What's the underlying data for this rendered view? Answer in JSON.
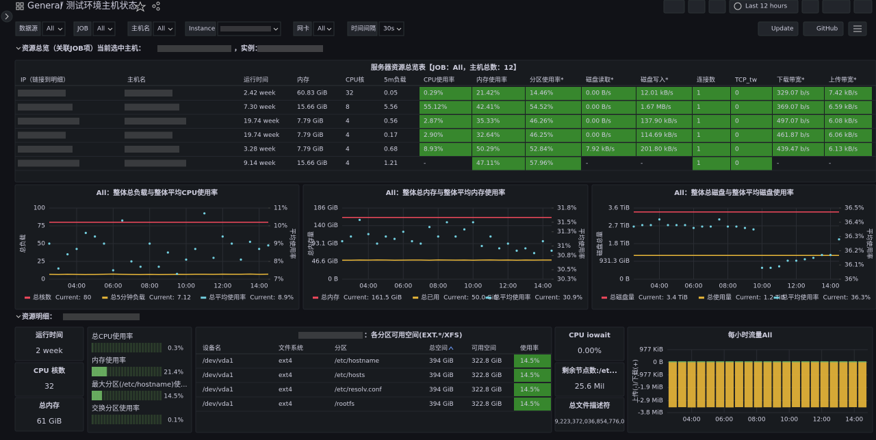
{
  "header": {
    "breadcrumb": "General",
    "title": "/ 测试环境主机状态",
    "time_range": "Last 12 hours"
  },
  "variables": [
    {
      "label": "数据源",
      "value": "All"
    },
    {
      "label": "JOB",
      "value": "All"
    },
    {
      "label": "主机名",
      "value": "All"
    },
    {
      "label": "Instance"
    },
    {
      "label": "网卡",
      "value": "All"
    },
    {
      "label": "时间间隔",
      "value": "30s"
    }
  ],
  "buttons": [
    "Update",
    "GitHub"
  ],
  "sections": [
    {
      "title": "资源总览（关联JOB项）当前选中主机：",
      "instance_label": "，实例："
    },
    {
      "title": "资源明细："
    }
  ],
  "overview_table": {
    "title": "服务器资源总览表【JOB：All，主机总数：12】",
    "columns": [
      "IP（链接到明细）",
      "主机名",
      "运行时间",
      "内存",
      "CPU核",
      "5m负载",
      "CPU使用率",
      "内存使用率",
      "分区使用率*",
      "磁盘读取*",
      "磁盘写入*",
      "连接数",
      "TCP_tw",
      "下载带宽*",
      "上传带宽*"
    ],
    "rows": [
      [
        null,
        null,
        "2.42 week",
        "60.83 GiB",
        "32",
        "0.05",
        "0.29%",
        "21.42%",
        "14.46%",
        "0.00 B/s",
        "12.01 kB/s",
        "1",
        "0",
        "329.07 b/s",
        "7.42 kB/s"
      ],
      [
        null,
        null,
        "7.30 week",
        "15.66 GiB",
        "8",
        "5.56",
        "55.12%",
        "42.41%",
        "54.52%",
        "0.00 B/s",
        "1.67 MB/s",
        "1",
        "0",
        "369.07 b/s",
        "6.59 kB/s"
      ],
      [
        null,
        null,
        "19.74 week",
        "7.79 GiB",
        "4",
        "0.56",
        "2.87%",
        "35.33%",
        "46.26%",
        "0.00 B/s",
        "137.90 kB/s",
        "1",
        "0",
        "497.07 b/s",
        "6.08 kB/s"
      ],
      [
        null,
        null,
        "19.74 week",
        "7.79 GiB",
        "4",
        "0.17",
        "2.90%",
        "32.64%",
        "46.25%",
        "0.00 B/s",
        "114.69 kB/s",
        "1",
        "0",
        "461.87 b/s",
        "6.06 kB/s"
      ],
      [
        null,
        null,
        "3.28 week",
        "7.79 GiB",
        "4",
        "0.68",
        "8.93%",
        "50.29%",
        "52.84%",
        "7.92 kB/s",
        "201.80 kB/s",
        "1",
        "0",
        "439.47 b/s",
        "6.13 kB/s"
      ],
      [
        null,
        null,
        "9.14 week",
        "15.66 GiB",
        "4",
        "1.21",
        "-",
        "47.11%",
        "57.96%",
        "-",
        "-",
        "1",
        "0",
        "-",
        "-"
      ]
    ]
  },
  "chart_data": [
    {
      "type": "line",
      "title": "All：整体总负载与整体平均CPU使用率",
      "ylabel": "总负载",
      "y2label": "平均使用率",
      "x": [
        "02:30",
        "03:00",
        "03:30",
        "04:00",
        "04:30",
        "05:00",
        "05:30",
        "06:00",
        "06:30",
        "07:00",
        "07:30",
        "08:00",
        "08:30",
        "09:00",
        "09:30",
        "10:00",
        "10:30",
        "11:00",
        "11:30",
        "12:00",
        "12:30",
        "13:00",
        "13:30",
        "14:00",
        "14:30"
      ],
      "xlim": [
        "02:30",
        "14:30"
      ],
      "xticks": [
        "04:00",
        "06:00",
        "08:00",
        "10:00",
        "12:00",
        "14:00"
      ],
      "ylim": [
        0,
        100
      ],
      "yticks": [
        0,
        25,
        50,
        75,
        100
      ],
      "y2lim": [
        7,
        11
      ],
      "y2ticks": [
        {
          "value": 7,
          "label": "7%"
        },
        {
          "value": 8,
          "label": "8%"
        },
        {
          "value": 9,
          "label": "9%"
        },
        {
          "value": 10,
          "label": "10%"
        },
        {
          "value": 11,
          "label": "11%"
        }
      ],
      "grid": true,
      "current_label": "Current:",
      "series": [
        {
          "name": "总核数",
          "color": "#f2495c",
          "current": "80",
          "values": [
            80,
            80,
            80,
            80,
            80,
            80,
            80,
            80,
            80,
            80,
            80,
            80,
            80,
            80,
            80,
            80,
            80,
            80,
            80,
            80,
            80,
            80,
            80,
            80,
            80
          ]
        },
        {
          "name": "总5分钟负载",
          "color": "#eab839",
          "current": "7.12",
          "values": [
            6.8,
            6.6,
            6.9,
            6.7,
            6.5,
            6.6,
            6.9,
            7.2,
            6.8,
            6.6,
            6.5,
            6.7,
            6.4,
            6.6,
            6.8,
            6.7,
            6.9,
            7.0,
            6.8,
            7.1,
            6.9,
            7.0,
            7.2,
            6.8,
            7.12
          ]
        },
        {
          "name": "总平均使用率",
          "color": "#73d0e0",
          "current": "8.9%",
          "axis": "y2",
          "style": "points",
          "values": [
            9.0,
            7.6,
            8.4,
            8.7,
            9.6,
            9.4,
            9.0,
            7.5,
            10.3,
            8.0,
            7.7,
            9.0,
            7.7,
            8.5,
            7.3,
            8.1,
            8.7,
            10.7,
            8.2,
            9.4,
            9.0,
            8.1,
            9.1,
            8.7,
            8.9
          ]
        }
      ]
    },
    {
      "type": "line",
      "title": "All：整体总内存与整体平均内存使用率",
      "ylabel": "总内存量",
      "y2label": "平均使用率",
      "x": [
        "02:30",
        "03:00",
        "03:30",
        "04:00",
        "04:30",
        "05:00",
        "05:30",
        "06:00",
        "06:30",
        "07:00",
        "07:30",
        "08:00",
        "08:30",
        "09:00",
        "09:30",
        "10:00",
        "10:30",
        "11:00",
        "11:30",
        "12:00",
        "12:30",
        "13:00",
        "13:30",
        "14:00",
        "14:30"
      ],
      "xlim": [
        "02:30",
        "14:30"
      ],
      "xticks": [
        "04:00",
        "06:00",
        "08:00",
        "10:00",
        "12:00",
        "14:00"
      ],
      "ylim": [
        0,
        186
      ],
      "yticks": [
        {
          "value": 0,
          "label": "0 B"
        },
        {
          "value": 46.6,
          "label": "46.6 GiB"
        },
        {
          "value": 93.1,
          "label": "93.1 GiB"
        },
        {
          "value": 140,
          "label": "140 GiB"
        },
        {
          "value": 186,
          "label": "186 GiB"
        }
      ],
      "y2lim": [
        30.3,
        31.8
      ],
      "y2ticks": [
        {
          "value": 30.3,
          "label": "30.3%"
        },
        {
          "value": 30.5,
          "label": "30.5%"
        },
        {
          "value": 30.8,
          "label": "30.8%"
        },
        {
          "value": 31,
          "label": "31%"
        },
        {
          "value": 31.3,
          "label": "31.3%"
        },
        {
          "value": 31.5,
          "label": "31.5%"
        },
        {
          "value": 31.8,
          "label": "31.8%"
        }
      ],
      "grid": true,
      "current_label": "Current:",
      "series": [
        {
          "name": "总内存",
          "color": "#f2495c",
          "current": "161.5 GiB",
          "values": [
            161.5,
            161.5,
            161.5,
            161.5,
            161.5,
            161.5,
            161.5,
            161.5,
            161.5,
            161.5,
            161.5,
            161.5,
            161.5,
            161.5,
            161.5,
            161.5,
            161.5,
            161.5,
            161.5,
            161.5,
            161.5,
            161.5,
            161.5,
            161.5,
            161.5
          ]
        },
        {
          "name": "总已用",
          "color": "#eab839",
          "current": "50.0 GiB",
          "values": [
            49.6,
            49.8,
            50.1,
            49.9,
            50.2,
            50.0,
            49.7,
            49.9,
            50.1,
            50.0,
            49.8,
            50.2,
            50.0,
            49.9,
            50.1,
            49.8,
            50.0,
            50.2,
            49.9,
            50.1,
            49.8,
            50.0,
            49.9,
            50.1,
            50.0
          ]
        },
        {
          "name": "总平均使用率",
          "color": "#73d0e0",
          "current": "30.9%",
          "axis": "y2",
          "style": "points",
          "values": [
            31.1,
            31.2,
            31.55,
            31.25,
            31.05,
            31.2,
            31.15,
            31.3,
            31.1,
            31.05,
            31.4,
            31.2,
            31.5,
            31.2,
            31.35,
            31.5,
            31.0,
            31.2,
            30.95,
            31.05,
            30.9,
            30.95,
            30.85,
            31.1,
            30.9
          ]
        }
      ]
    },
    {
      "type": "line",
      "title": "All：整体总磁盘与整体平均磁盘使用率",
      "ylabel": "磁盘总量",
      "y2label": "平均使用率",
      "x": [
        "02:30",
        "03:00",
        "03:30",
        "04:00",
        "04:30",
        "05:00",
        "05:30",
        "06:00",
        "06:30",
        "07:00",
        "07:30",
        "08:00",
        "08:30",
        "09:00",
        "09:30",
        "10:00",
        "10:30",
        "11:00",
        "11:30",
        "12:00",
        "12:30",
        "13:00",
        "13:30",
        "14:00",
        "14:30"
      ],
      "xlim": [
        "02:30",
        "14:30"
      ],
      "xticks": [
        "04:00",
        "06:00",
        "08:00",
        "10:00",
        "12:00",
        "14:00"
      ],
      "ylim": [
        0,
        3686.4
      ],
      "yticks": [
        {
          "value": 0,
          "label": "0 B"
        },
        {
          "value": 931.3,
          "label": "931.3 GiB"
        },
        {
          "value": 1843.2,
          "label": "1.8 TiB"
        },
        {
          "value": 2764.8,
          "label": "2.7 TiB"
        },
        {
          "value": 3686.4,
          "label": "3.6 TiB"
        }
      ],
      "y2lim": [
        36,
        36.5
      ],
      "y2ticks": [
        {
          "value": 36,
          "label": "36%"
        },
        {
          "value": 36.1,
          "label": "36.1%"
        },
        {
          "value": 36.2,
          "label": "36.2%"
        },
        {
          "value": 36.3,
          "label": "36.3%"
        },
        {
          "value": 36.4,
          "label": "36.4%"
        },
        {
          "value": 36.5,
          "label": "36.5%"
        }
      ],
      "grid": true,
      "current_label": "Current:",
      "series": [
        {
          "name": "总磁盘量",
          "color": "#f2495c",
          "current": "3.4 TiB",
          "values": [
            3481.6,
            3481.6,
            3481.6,
            3481.6,
            3481.6,
            3481.6,
            3481.6,
            3481.6,
            3481.6,
            3481.6,
            3481.6,
            3481.6,
            3481.6,
            3481.6,
            3481.6,
            3481.6,
            3481.6,
            3481.6,
            3481.6,
            3481.6,
            3481.6,
            3481.6,
            3481.6,
            3481.6,
            3481.6
          ]
        },
        {
          "name": "总使用量",
          "color": "#eab839",
          "current": "1.2 TiB",
          "values": [
            1228.8,
            1228.8,
            1228.8,
            1228.8,
            1228.8,
            1228.8,
            1228.8,
            1228.8,
            1228.8,
            1228.8,
            1228.8,
            1228.8,
            1228.8,
            1228.8,
            1228.8,
            1228.8,
            1228.8,
            1228.8,
            1228.8,
            1228.8,
            1228.8,
            1228.8,
            1228.8,
            1228.8,
            1228.8
          ]
        },
        {
          "name": "总平均使用率",
          "color": "#73d0e0",
          "current": "36.3%",
          "axis": "y2",
          "style": "points",
          "values": [
            36.37,
            36.38,
            36.38,
            36.42,
            36.38,
            36.38,
            36.38,
            36.36,
            36.37,
            36.37,
            36.42,
            36.37,
            36.37,
            36.36,
            36.35,
            36.08,
            36.08,
            36.09,
            36.13,
            36.13,
            36.14,
            36.15,
            36.17,
            36.17,
            36.28
          ]
        }
      ]
    },
    {
      "type": "bar",
      "title": "每小时流量All",
      "ylabel": "上传(-)/下载(+)",
      "x": [
        "02:50",
        "03:25",
        "04:00",
        "04:35",
        "05:10",
        "05:45",
        "06:20",
        "06:55",
        "07:30",
        "08:05",
        "08:40",
        "09:15",
        "09:50",
        "10:25",
        "11:00",
        "11:35",
        "12:10",
        "12:45",
        "13:20",
        "13:55",
        "14:30"
      ],
      "xlim": [
        "02:30",
        "14:50"
      ],
      "xticks": [
        "04:00",
        "06:00",
        "08:00",
        "10:00",
        "12:00",
        "14:00"
      ],
      "ylim": [
        -3891.2,
        977
      ],
      "yticks": [
        {
          "value": 977,
          "label": "977 KiB"
        },
        {
          "value": 0,
          "label": "0 B"
        },
        {
          "value": -977,
          "label": "-977 KiB"
        },
        {
          "value": -1945.6,
          "label": "-1.9 MiB"
        },
        {
          "value": -2969.6,
          "label": "-2.9 MiB"
        },
        {
          "value": -3891.2,
          "label": "-3.8 MiB"
        }
      ],
      "grid": true,
      "series": [
        {
          "color": "#eab839",
          "values": [
            -3480,
            -3470,
            -3490,
            -3485,
            -3475,
            -3480,
            -3490,
            -3470,
            -3480,
            -3485,
            -3475,
            -3490,
            -3480,
            -3470,
            -3485,
            -3480,
            -3475,
            -3490,
            -3480,
            -3470,
            -3485
          ]
        },
        {
          "color": "#73bf69",
          "values": [
            80,
            80,
            80,
            80,
            80,
            80,
            80,
            80,
            80,
            80,
            80,
            80,
            80,
            80,
            80,
            80,
            80,
            80,
            80,
            80,
            80
          ]
        }
      ]
    }
  ],
  "stats": [
    {
      "title": "运行时间",
      "value": "2 week"
    },
    {
      "title": "CPU 核数",
      "value": "32"
    },
    {
      "title": "总内存",
      "value": "61 GiB"
    },
    {
      "title": "CPU iowait",
      "value": "0.00%"
    },
    {
      "title": "剩余节点数:/et...",
      "value": "25.6 Mil"
    },
    {
      "title": "总文件描述符",
      "value": "9,223,372,036,854,776,0"
    }
  ],
  "gauges": [
    {
      "title": "总CPU使用率",
      "value": 0.3,
      "label": "0.3%"
    },
    {
      "title": "内存使用率",
      "value": 21.4,
      "label": "21.4%"
    },
    {
      "title": "最大分区(/etc/hostname)使...",
      "value": 14.5,
      "label": "14.5%"
    },
    {
      "title": "交换分区使用率",
      "value": 0.1,
      "label": "0.1%"
    }
  ],
  "partition_table": {
    "title": "：各分区可用空间(EXT.*/XFS)",
    "columns": [
      "设备名",
      "文件系统",
      "分区",
      "总空间",
      "可用空间",
      "使用率"
    ],
    "rows": [
      [
        "/dev/vda1",
        "ext4",
        "/etc/hostname",
        "394 GiB",
        "322.8 GiB",
        "14.5%"
      ],
      [
        "/dev/vda1",
        "ext4",
        "/etc/hosts",
        "394 GiB",
        "322.8 GiB",
        "14.5%"
      ],
      [
        "/dev/vda1",
        "ext4",
        "/etc/resolv.conf",
        "394 GiB",
        "322.8 GiB",
        "14.5%"
      ],
      [
        "/dev/vda1",
        "ext4",
        "/rootfs",
        "394 GiB",
        "322.8 GiB",
        "14.5%"
      ]
    ]
  }
}
